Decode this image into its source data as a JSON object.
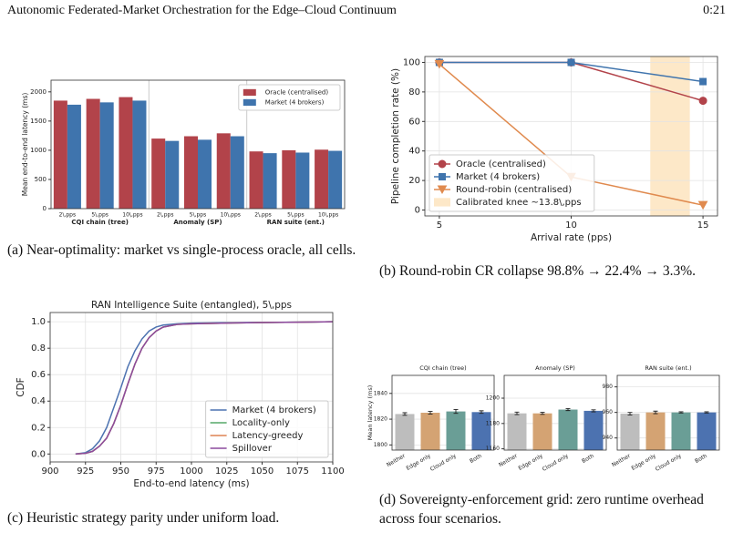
{
  "header": {
    "title": "Autonomic Federated-Market Orchestration for the Edge–Cloud Continuum",
    "page": "0:21"
  },
  "chart_data": [
    {
      "type": "bar",
      "categories": [
        "2\\,pps",
        "5\\,pps",
        "10\\,pps",
        "2\\,pps",
        "5\\,pps",
        "10\\,pps",
        "2\\,pps",
        "5\\,pps",
        "10\\,pps"
      ],
      "group_labels": [
        "CQI chain (tree)",
        "Anomaly (SP)",
        "RAN suite (ent.)"
      ],
      "ylabel": "Mean end-to-end latency (ms)",
      "ylim": [
        0,
        2200
      ],
      "yticks": [
        0,
        500,
        1000,
        1500,
        2000
      ],
      "grid": false,
      "legend": "upper right",
      "series": [
        {
          "name": "Oracle (centralised)",
          "color": "#b2434a",
          "values": [
            1850,
            1880,
            1910,
            1200,
            1240,
            1290,
            980,
            1000,
            1010
          ]
        },
        {
          "name": "Market (4 brokers)",
          "color": "#3f74ad",
          "values": [
            1780,
            1820,
            1850,
            1160,
            1180,
            1240,
            950,
            960,
            990
          ]
        }
      ]
    },
    {
      "type": "line",
      "x": [
        5,
        10,
        15
      ],
      "xlim": [
        4.45,
        15.55
      ],
      "xticks": [
        5,
        10,
        15
      ],
      "ylim": [
        -4,
        104
      ],
      "yticks": [
        0,
        20,
        40,
        60,
        80,
        100
      ],
      "xlabel": "Arrival rate (pps)",
      "ylabel": "Pipeline completion rate (%)",
      "grid": true,
      "legend": "lower left",
      "span": {
        "label": "Calibrated knee ~13.8\\,pps",
        "x": [
          13,
          14.5
        ],
        "color": "#fde8c8"
      },
      "series": [
        {
          "name": "Oracle (centralised)",
          "color": "#b2434a",
          "marker": "circle",
          "values": [
            100,
            100,
            74
          ]
        },
        {
          "name": "Market (4 brokers)",
          "color": "#3f74ad",
          "marker": "square",
          "values": [
            100,
            100,
            87
          ]
        },
        {
          "name": "Round-robin (centralised)",
          "color": "#e08a4e",
          "marker": "triangle-down",
          "values": [
            98.8,
            22.4,
            3.3
          ]
        }
      ]
    },
    {
      "type": "line",
      "title": "RAN Intelligence Suite (entangled), 5\\,pps",
      "x": [
        918,
        925,
        930,
        935,
        940,
        945,
        950,
        955,
        960,
        965,
        970,
        975,
        980,
        990,
        1000,
        1025,
        1050,
        1075,
        1100
      ],
      "xlim": [
        900,
        1100
      ],
      "xticks": [
        900,
        925,
        950,
        975,
        1000,
        1025,
        1050,
        1075,
        1100
      ],
      "ylim": [
        -0.06,
        1.07
      ],
      "yticks": [
        {
          "value": 0,
          "label": "0.0"
        },
        {
          "value": 0.2,
          "label": "0.2"
        },
        {
          "value": 0.4,
          "label": "0.4"
        },
        {
          "value": 0.6,
          "label": "0.6"
        },
        {
          "value": 0.8,
          "label": "0.8"
        },
        {
          "value": 1,
          "label": "1.0"
        }
      ],
      "xlabel": "End-to-end latency (ms)",
      "ylabel": "CDF",
      "grid": true,
      "legend": "lower right",
      "series": [
        {
          "name": "Market (4 brokers)",
          "color": "#4c72b0",
          "values": [
            0,
            0.01,
            0.04,
            0.1,
            0.2,
            0.35,
            0.5,
            0.66,
            0.78,
            0.87,
            0.93,
            0.96,
            0.975,
            0.985,
            0.99,
            0.993,
            0.995,
            0.997,
            1
          ]
        },
        {
          "name": "Locality-only",
          "color": "#55a868",
          "values": [
            0,
            0.005,
            0.02,
            0.06,
            0.12,
            0.23,
            0.37,
            0.53,
            0.68,
            0.8,
            0.88,
            0.93,
            0.96,
            0.98,
            0.985,
            0.99,
            0.994,
            0.997,
            1
          ]
        },
        {
          "name": "Latency-greedy",
          "color": "#dd8452",
          "values": [
            0,
            0.005,
            0.02,
            0.06,
            0.12,
            0.23,
            0.37,
            0.53,
            0.68,
            0.8,
            0.88,
            0.93,
            0.96,
            0.98,
            0.985,
            0.99,
            0.994,
            0.997,
            1
          ]
        },
        {
          "name": "Spillover",
          "color": "#8c4a9e",
          "values": [
            0,
            0.005,
            0.02,
            0.06,
            0.12,
            0.23,
            0.37,
            0.53,
            0.68,
            0.8,
            0.88,
            0.93,
            0.96,
            0.98,
            0.985,
            0.99,
            0.994,
            0.997,
            1
          ]
        }
      ]
    },
    {
      "type": "bar",
      "title": "CQI chain (tree)",
      "ylabel": "Mean latency (ms)",
      "categories": [
        "Neither",
        "Edge only",
        "Cloud only",
        "Both"
      ],
      "colors": [
        "#bdbdbd",
        "#d4a373",
        "#6a9e96",
        "#4c72b0"
      ],
      "values": [
        1824,
        1825,
        1826,
        1825.5
      ],
      "errors": [
        1,
        1,
        1.5,
        1
      ],
      "ylim": [
        1796,
        1854
      ],
      "yticks": [
        1800,
        1820,
        1840
      ],
      "grid": true
    },
    {
      "type": "bar",
      "title": "Anomaly (SP)",
      "categories": [
        "Neither",
        "Edge only",
        "Cloud only",
        "Both"
      ],
      "colors": [
        "#bdbdbd",
        "#d4a373",
        "#6a9e96",
        "#4c72b0"
      ],
      "values": [
        1188,
        1188,
        1191,
        1190
      ],
      "errors": [
        1,
        0.8,
        0.8,
        0.8
      ],
      "ylim": [
        1159,
        1218
      ],
      "yticks": [
        1160,
        1180,
        1200
      ],
      "grid": true
    },
    {
      "type": "bar",
      "title": "RAN suite (ent.)",
      "categories": [
        "Neither",
        "Edge only",
        "Cloud only",
        "Both"
      ],
      "colors": [
        "#bdbdbd",
        "#d4a373",
        "#6a9e96",
        "#4c72b0"
      ],
      "values": [
        959,
        960,
        960,
        960
      ],
      "errors": [
        1,
        1,
        0.5,
        0.5
      ],
      "ylim": [
        930.5,
        989
      ],
      "yticks": [
        940,
        960,
        980
      ],
      "grid": true
    }
  ],
  "captions": [
    "(a) Near-optimality: market vs single-process oracle, all cells.",
    "(b) Round-robin CR collapse 98.8% → 22.4% → 3.3%.",
    "(c) Heuristic strategy parity under uniform load.",
    "(d) Sovereignty-enforcement grid: zero runtime overhead across four scenarios."
  ]
}
